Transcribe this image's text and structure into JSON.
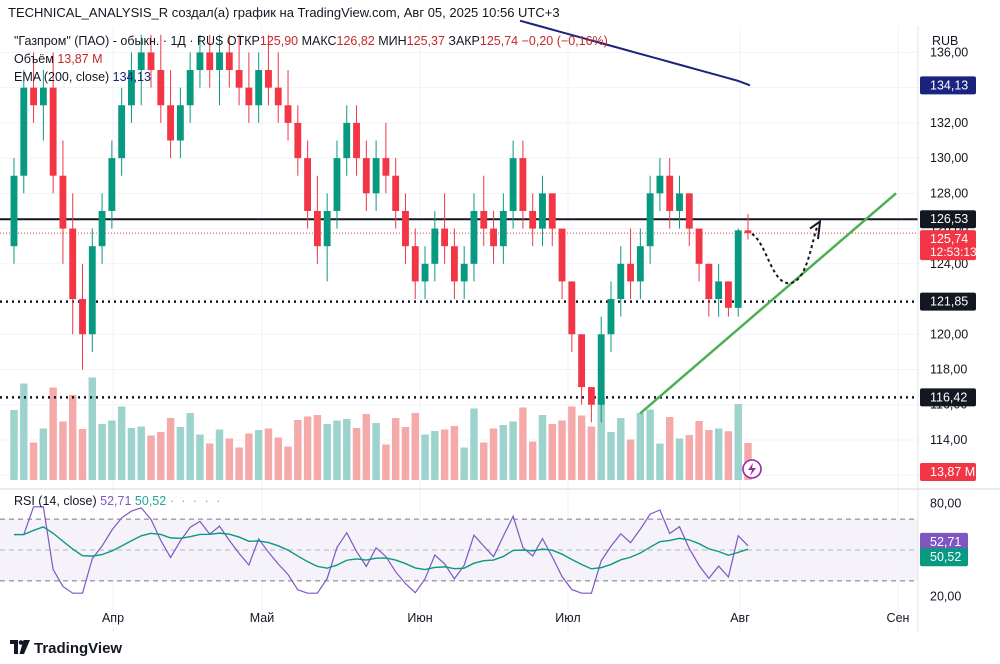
{
  "header": {
    "top_line": "TECHNICAL_ANALYSIS_R создал(а) график на TradingView.com, Авг 05, 2025 10:56 UTC+3",
    "instrument": "\"Газпром\" (ПАО) - обыкн. · 1Д · RUS",
    "open_label": "ОТКР",
    "open_value": "125,90",
    "high_label": "МАКС",
    "high_value": "126,82",
    "low_label": "МИН",
    "low_value": "125,37",
    "close_label": "ЗАКР",
    "close_value": "125,74",
    "change_value": "−0,20 (−0,16%)",
    "volume_label": "Объём",
    "volume_value": "13,87 M",
    "ema_label": "EMA (200, close)",
    "ema_value": "134,13",
    "rsi_label": "RSI (14, close)",
    "rsi_value": "52,71",
    "rsi_ma_value": "50,52"
  },
  "currency": "RUB",
  "price_axis": {
    "ticks": [
      "136,00",
      "134,00",
      "132,00",
      "130,00",
      "128,00",
      "126,00",
      "124,00",
      "122,00",
      "120,00",
      "118,00",
      "116,00",
      "114,00",
      "112,00"
    ],
    "markers": [
      {
        "label": "134,13",
        "color": "#1a237e",
        "text_color": "#ffffff"
      },
      {
        "label": "126,53",
        "color": "#131722",
        "text_color": "#ffffff"
      },
      {
        "label": "125,74",
        "sub": "12:53:13",
        "color": "#f23645",
        "text_color": "#ffffff"
      },
      {
        "label": "121,85",
        "color": "#131722",
        "text_color": "#ffffff"
      },
      {
        "label": "116,42",
        "color": "#131722",
        "text_color": "#ffffff"
      },
      {
        "label": "13,87 M",
        "color": "#f23645",
        "text_color": "#ffffff"
      }
    ]
  },
  "rsi_axis": {
    "ticks": [
      "80,00",
      "20,00"
    ],
    "markers": [
      {
        "label": "52,71",
        "color": "#7e57c2",
        "text_color": "#ffffff"
      },
      {
        "label": "50,52",
        "color": "#089981",
        "text_color": "#ffffff"
      }
    ]
  },
  "time_axis": [
    "Апр",
    "Май",
    "Июн",
    "Июл",
    "Авг",
    "Сен"
  ],
  "brand": "TradingView",
  "colors": {
    "up": "#089981",
    "down": "#f23645",
    "vol_up": "#9dd3cd",
    "vol_down": "#f6a9a9",
    "ema": "#1a237e",
    "rsi": "#7e57c2",
    "rsi_ma": "#089981",
    "trend": "#4caf50"
  },
  "chart_data": {
    "type": "candlestick",
    "title": "\"Газпром\" (ПАО) - обыкн. · 1Д · RUS",
    "ylabel": "RUB",
    "ylim": [
      111.5,
      137.5
    ],
    "horizontal_levels": [
      126.53,
      121.85,
      116.42
    ],
    "last_price": 125.74,
    "ohlc": [
      [
        125,
        130,
        124,
        129
      ],
      [
        129,
        135,
        128,
        134
      ],
      [
        134,
        136,
        132,
        133
      ],
      [
        133,
        135,
        131,
        134
      ],
      [
        134,
        136,
        128,
        129
      ],
      [
        129,
        131,
        124,
        126
      ],
      [
        126,
        128,
        120,
        122
      ],
      [
        122,
        124,
        118,
        120
      ],
      [
        120,
        126,
        119,
        125
      ],
      [
        125,
        128,
        124,
        127
      ],
      [
        127,
        131,
        126,
        130
      ],
      [
        130,
        134,
        129,
        133
      ],
      [
        133,
        136,
        132,
        135
      ],
      [
        135,
        137,
        133,
        136
      ],
      [
        136,
        137,
        134,
        135
      ],
      [
        135,
        137,
        132,
        133
      ],
      [
        133,
        135,
        130,
        131
      ],
      [
        131,
        134,
        130,
        133
      ],
      [
        133,
        136,
        132,
        135
      ],
      [
        135,
        137,
        134,
        136
      ],
      [
        136,
        137,
        134,
        135
      ],
      [
        135,
        137,
        133,
        136
      ],
      [
        136,
        137,
        134,
        135
      ],
      [
        135,
        137,
        133,
        134
      ],
      [
        134,
        136,
        132,
        133
      ],
      [
        133,
        136,
        132,
        135
      ],
      [
        135,
        137,
        133,
        134
      ],
      [
        134,
        136,
        132,
        133
      ],
      [
        133,
        135,
        131,
        132
      ],
      [
        132,
        133,
        129,
        130
      ],
      [
        130,
        131,
        126,
        127
      ],
      [
        127,
        129,
        124,
        125
      ],
      [
        125,
        128,
        123,
        127
      ],
      [
        127,
        131,
        126,
        130
      ],
      [
        130,
        133,
        129,
        132
      ],
      [
        132,
        133,
        129,
        130
      ],
      [
        130,
        131,
        127,
        128
      ],
      [
        128,
        131,
        127,
        130
      ],
      [
        130,
        132,
        128,
        129
      ],
      [
        129,
        130,
        126,
        127
      ],
      [
        127,
        128,
        124,
        125
      ],
      [
        125,
        126,
        122,
        123
      ],
      [
        123,
        125,
        122,
        124
      ],
      [
        124,
        127,
        123,
        126
      ],
      [
        126,
        128,
        124,
        125
      ],
      [
        125,
        126,
        122,
        123
      ],
      [
        123,
        125,
        122,
        124
      ],
      [
        124,
        128,
        123,
        127
      ],
      [
        127,
        129,
        125,
        126
      ],
      [
        126,
        127,
        124,
        125
      ],
      [
        125,
        128,
        124,
        127
      ],
      [
        127,
        131,
        126,
        130
      ],
      [
        130,
        131,
        126,
        127
      ],
      [
        127,
        128,
        125,
        126
      ],
      [
        126,
        129,
        125,
        128
      ],
      [
        128,
        128,
        125,
        126
      ],
      [
        126,
        126,
        122,
        123
      ],
      [
        123,
        123,
        119,
        120
      ],
      [
        120,
        120,
        116,
        117
      ],
      [
        117,
        117,
        115,
        116
      ],
      [
        116,
        121,
        115,
        120
      ],
      [
        120,
        123,
        119,
        122
      ],
      [
        122,
        125,
        121,
        124
      ],
      [
        124,
        126,
        122,
        123
      ],
      [
        123,
        126,
        122,
        125
      ],
      [
        125,
        129,
        124,
        128
      ],
      [
        128,
        130,
        127,
        129
      ],
      [
        129,
        130,
        126,
        127
      ],
      [
        127,
        129,
        126,
        128
      ],
      [
        128,
        128,
        125,
        126
      ],
      [
        126,
        126,
        123,
        124
      ],
      [
        124,
        124,
        121,
        122
      ],
      [
        122,
        124,
        121,
        123
      ],
      [
        123,
        123,
        121,
        121.5
      ],
      [
        121.5,
        126,
        121,
        125.9
      ],
      [
        125.9,
        126.82,
        125.37,
        125.74
      ]
    ],
    "ema200": [
      137.8,
      137.6,
      137.4,
      137.2,
      137.0,
      136.8,
      136.6,
      136.4,
      136.2,
      136.0,
      135.8,
      135.6,
      135.4,
      135.2,
      135.0,
      134.8,
      134.6,
      134.4,
      134.13
    ],
    "rsi": [
      52.71
    ],
    "rsi_ma": [
      50.52
    ],
    "rsi_bands": [
      70,
      30
    ],
    "rsi_ylim": [
      15,
      85
    ]
  }
}
